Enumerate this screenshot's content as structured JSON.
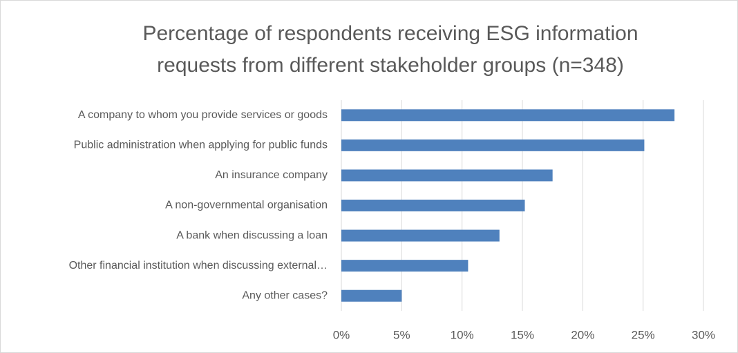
{
  "chart_data": {
    "type": "barh",
    "title": [
      "Percentage of respondents receiving ESG information",
      "requests from different stakeholder groups (n=348)"
    ],
    "categories": [
      "A company to whom you provide services or goods",
      "Public administration when applying for public funds",
      "An insurance company",
      "A non-governmental organisation",
      "A bank when discussing a loan",
      "Other financial institution when discussing external…",
      "Any other cases?"
    ],
    "values": [
      27.6,
      25.1,
      17.5,
      15.2,
      13.1,
      10.5,
      5.0
    ],
    "color": "#4f81bd",
    "xlim": [
      0,
      30
    ],
    "xticks": [
      {
        "value": 0,
        "label": "0%"
      },
      {
        "value": 5,
        "label": "5%"
      },
      {
        "value": 10,
        "label": "10%"
      },
      {
        "value": 15,
        "label": "15%"
      },
      {
        "value": 20,
        "label": "20%"
      },
      {
        "value": 25,
        "label": "25%"
      },
      {
        "value": 30,
        "label": "30%"
      }
    ],
    "grid": true
  }
}
